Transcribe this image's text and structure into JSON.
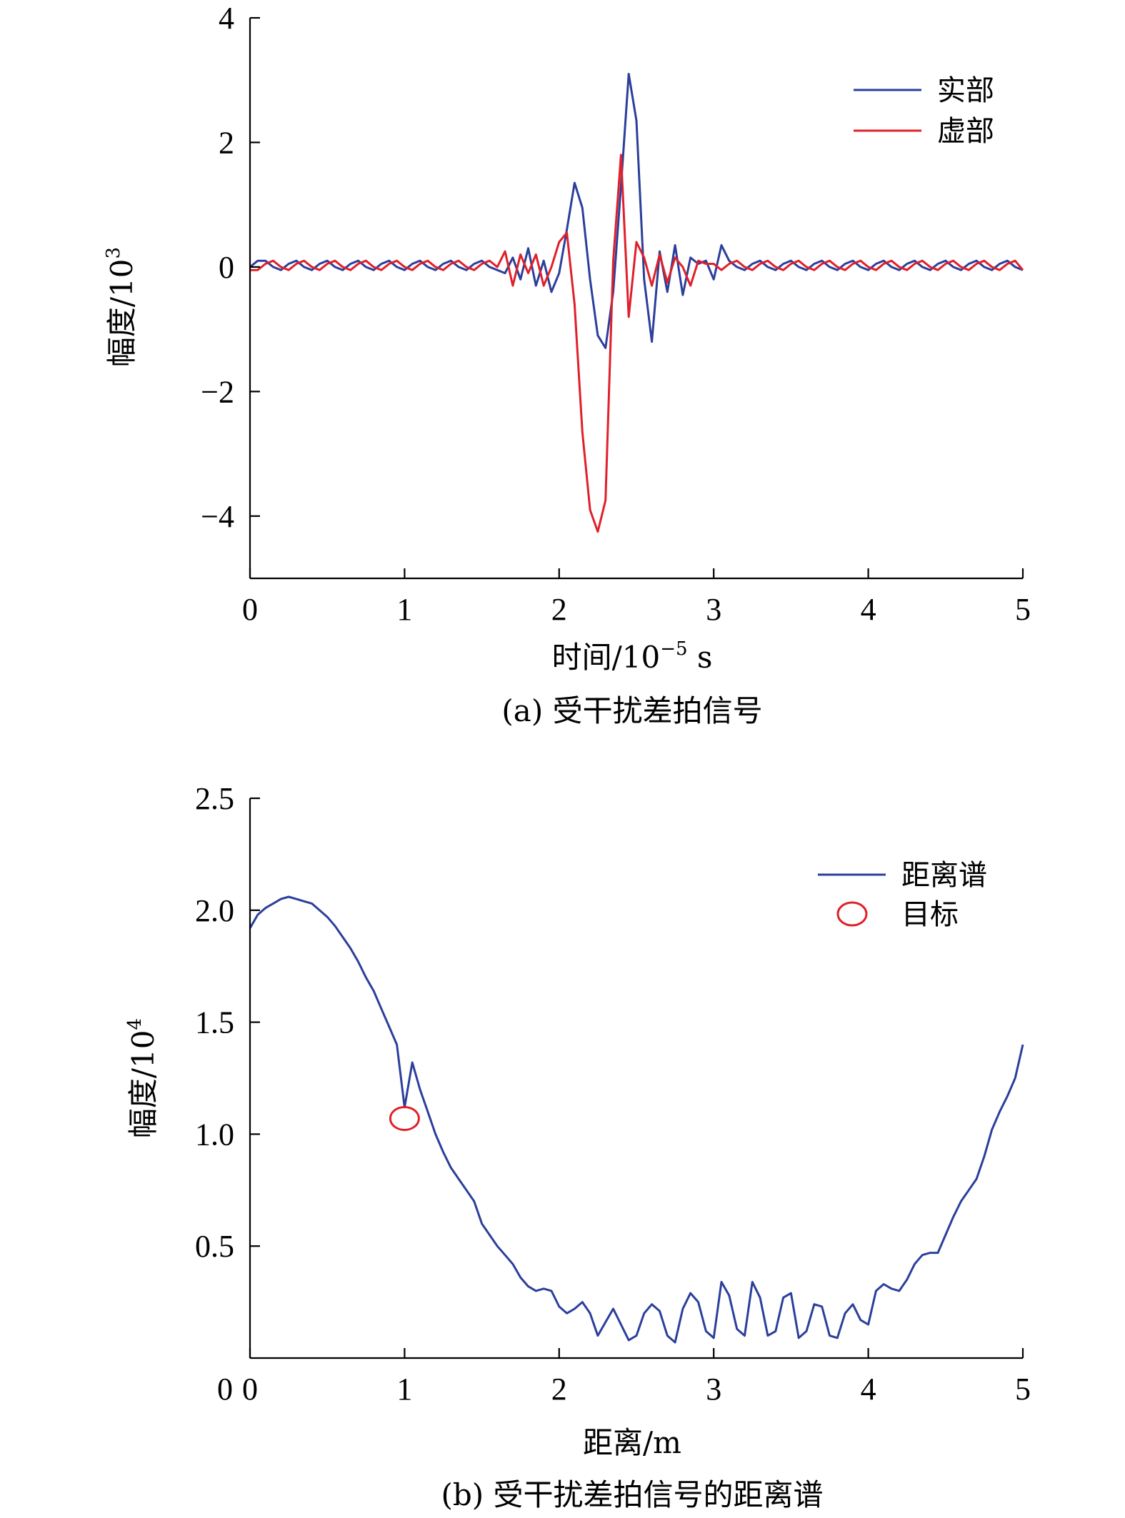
{
  "colors": {
    "blue": "#2b3f9b",
    "red": "#e0202a",
    "axis": "#000000"
  },
  "chart_data": [
    {
      "type": "line",
      "xlabel_main": "时间/10",
      "xlabel_sup": "−5",
      "xlabel_unit": " s",
      "ylabel_main": "幅度/10",
      "ylabel_sup": "3",
      "caption": "(a) 受干扰差拍信号",
      "xlim": [
        0,
        5
      ],
      "ylim": [
        -5,
        4
      ],
      "xticks": [
        0,
        1,
        2,
        3,
        4,
        5
      ],
      "xtick_labels": [
        "0",
        "1",
        "2",
        "3",
        "4",
        "5"
      ],
      "yticks": [
        4,
        2,
        0,
        -2,
        -4
      ],
      "ytick_labels": [
        "4",
        "2",
        "0",
        "−2",
        "−4"
      ],
      "legend_position": "top-right",
      "series": [
        {
          "name": "实部",
          "color": "#2b3f9b",
          "x": [
            0,
            0.05,
            0.1,
            0.15,
            0.2,
            0.25,
            0.3,
            0.35,
            0.4,
            0.45,
            0.5,
            0.55,
            0.6,
            0.65,
            0.7,
            0.75,
            0.8,
            0.85,
            0.9,
            0.95,
            1.0,
            1.05,
            1.1,
            1.15,
            1.2,
            1.25,
            1.3,
            1.35,
            1.4,
            1.45,
            1.5,
            1.55,
            1.6,
            1.65,
            1.7,
            1.75,
            1.8,
            1.85,
            1.9,
            1.95,
            2.0,
            2.05,
            2.1,
            2.15,
            2.2,
            2.25,
            2.3,
            2.35,
            2.4,
            2.45,
            2.5,
            2.55,
            2.6,
            2.65,
            2.7,
            2.75,
            2.8,
            2.85,
            2.9,
            2.95,
            3.0,
            3.05,
            3.1,
            3.15,
            3.2,
            3.25,
            3.3,
            3.35,
            3.4,
            3.45,
            3.5,
            3.55,
            3.6,
            3.65,
            3.7,
            3.75,
            3.8,
            3.85,
            3.9,
            3.95,
            4.0,
            4.05,
            4.1,
            4.15,
            4.2,
            4.25,
            4.3,
            4.35,
            4.4,
            4.45,
            4.5,
            4.55,
            4.6,
            4.65,
            4.7,
            4.75,
            4.8,
            4.85,
            4.9,
            4.95,
            5.0
          ],
          "y": [
            0.0,
            0.1,
            0.1,
            0.0,
            -0.05,
            0.05,
            0.1,
            0.0,
            -0.05,
            0.05,
            0.1,
            0.0,
            -0.05,
            0.05,
            0.1,
            0.0,
            -0.05,
            0.05,
            0.1,
            0.0,
            -0.05,
            0.05,
            0.1,
            0.0,
            -0.05,
            0.05,
            0.1,
            0.0,
            -0.05,
            0.05,
            0.1,
            0.0,
            -0.05,
            -0.1,
            0.15,
            -0.2,
            0.3,
            -0.3,
            0.1,
            -0.4,
            -0.1,
            0.6,
            1.35,
            0.95,
            -0.2,
            -1.1,
            -1.3,
            -0.4,
            1.3,
            3.1,
            2.35,
            -0.2,
            -1.2,
            0.25,
            -0.4,
            0.35,
            -0.45,
            0.15,
            0.05,
            0.1,
            -0.2,
            0.35,
            0.1,
            0.0,
            -0.05,
            0.05,
            0.1,
            0.0,
            -0.05,
            0.05,
            0.1,
            0.0,
            -0.05,
            0.05,
            0.1,
            0.0,
            -0.05,
            0.05,
            0.1,
            0.0,
            -0.05,
            0.05,
            0.1,
            0.0,
            -0.05,
            0.05,
            0.1,
            0.0,
            -0.05,
            0.05,
            0.1,
            0.0,
            -0.05,
            0.05,
            0.1,
            0.0,
            -0.05,
            0.05,
            0.1,
            0.0,
            -0.05
          ]
        },
        {
          "name": "虚部",
          "color": "#e0202a",
          "x": [
            0,
            0.05,
            0.1,
            0.15,
            0.2,
            0.25,
            0.3,
            0.35,
            0.4,
            0.45,
            0.5,
            0.55,
            0.6,
            0.65,
            0.7,
            0.75,
            0.8,
            0.85,
            0.9,
            0.95,
            1.0,
            1.05,
            1.1,
            1.15,
            1.2,
            1.25,
            1.3,
            1.35,
            1.4,
            1.45,
            1.5,
            1.55,
            1.6,
            1.65,
            1.7,
            1.75,
            1.8,
            1.85,
            1.9,
            1.95,
            2.0,
            2.05,
            2.1,
            2.15,
            2.2,
            2.25,
            2.3,
            2.35,
            2.4,
            2.45,
            2.5,
            2.55,
            2.6,
            2.65,
            2.7,
            2.75,
            2.8,
            2.85,
            2.9,
            2.95,
            3.0,
            3.05,
            3.1,
            3.15,
            3.2,
            3.25,
            3.3,
            3.35,
            3.4,
            3.45,
            3.5,
            3.55,
            3.6,
            3.65,
            3.7,
            3.75,
            3.8,
            3.85,
            3.9,
            3.95,
            4.0,
            4.05,
            4.1,
            4.15,
            4.2,
            4.25,
            4.3,
            4.35,
            4.4,
            4.45,
            4.5,
            4.55,
            4.6,
            4.65,
            4.7,
            4.75,
            4.8,
            4.85,
            4.9,
            4.95,
            5.0
          ],
          "y": [
            -0.05,
            -0.05,
            0.05,
            0.1,
            0.0,
            -0.05,
            0.05,
            0.1,
            0.0,
            -0.05,
            0.05,
            0.1,
            0.0,
            -0.05,
            0.05,
            0.1,
            0.0,
            -0.05,
            0.05,
            0.1,
            0.0,
            -0.05,
            0.05,
            0.1,
            0.0,
            -0.05,
            0.05,
            0.1,
            0.0,
            -0.05,
            0.05,
            0.1,
            0.0,
            0.25,
            -0.3,
            0.2,
            -0.1,
            0.2,
            -0.3,
            0.0,
            0.4,
            0.55,
            -0.6,
            -2.65,
            -3.9,
            -4.25,
            -3.75,
            0.1,
            1.8,
            -0.8,
            0.4,
            0.15,
            -0.3,
            0.2,
            -0.25,
            0.15,
            0.0,
            -0.3,
            0.1,
            0.05,
            0.05,
            -0.05,
            0.05,
            0.1,
            0.0,
            -0.05,
            0.05,
            0.1,
            0.0,
            -0.05,
            0.05,
            0.1,
            0.0,
            -0.05,
            0.05,
            0.1,
            0.0,
            -0.05,
            0.05,
            0.1,
            0.0,
            -0.05,
            0.05,
            0.1,
            0.0,
            -0.05,
            0.05,
            0.1,
            0.0,
            -0.05,
            0.05,
            0.1,
            0.0,
            -0.05,
            0.05,
            0.1,
            0.0,
            -0.05,
            0.05,
            0.1,
            -0.05
          ]
        }
      ]
    },
    {
      "type": "line",
      "xlabel_main": "距离/m",
      "ylabel_main": "幅度/10",
      "ylabel_sup": "4",
      "caption": "(b) 受干扰差拍信号的距离谱",
      "xlim": [
        0,
        5
      ],
      "ylim": [
        0,
        2.5
      ],
      "xticks": [
        0,
        1,
        2,
        3,
        4,
        5
      ],
      "xtick_labels": [
        "0",
        "1",
        "2",
        "3",
        "4",
        "5"
      ],
      "yticks": [
        2.5,
        2.0,
        1.5,
        1.0,
        0.5
      ],
      "ytick_labels": [
        "2.5",
        "2.0",
        "1.5",
        "1.0",
        "0.5"
      ],
      "legend_position": "top-right",
      "series": [
        {
          "name": "距离谱",
          "color": "#2b3f9b",
          "x": [
            0,
            0.05,
            0.1,
            0.15,
            0.2,
            0.25,
            0.3,
            0.35,
            0.4,
            0.45,
            0.5,
            0.55,
            0.6,
            0.65,
            0.7,
            0.75,
            0.8,
            0.85,
            0.9,
            0.95,
            1.0,
            1.05,
            1.1,
            1.15,
            1.2,
            1.25,
            1.3,
            1.35,
            1.4,
            1.45,
            1.5,
            1.55,
            1.6,
            1.65,
            1.7,
            1.75,
            1.8,
            1.85,
            1.9,
            1.95,
            2.0,
            2.05,
            2.1,
            2.15,
            2.2,
            2.25,
            2.3,
            2.35,
            2.4,
            2.45,
            2.5,
            2.55,
            2.6,
            2.65,
            2.7,
            2.75,
            2.8,
            2.85,
            2.9,
            2.95,
            3.0,
            3.05,
            3.1,
            3.15,
            3.2,
            3.25,
            3.3,
            3.35,
            3.4,
            3.45,
            3.5,
            3.55,
            3.6,
            3.65,
            3.7,
            3.75,
            3.8,
            3.85,
            3.9,
            3.95,
            4.0,
            4.05,
            4.1,
            4.15,
            4.2,
            4.25,
            4.3,
            4.35,
            4.4,
            4.45,
            4.5,
            4.55,
            4.6,
            4.65,
            4.7,
            4.75,
            4.8,
            4.85,
            4.9,
            4.95,
            5.0
          ],
          "y": [
            1.92,
            1.98,
            2.01,
            2.03,
            2.05,
            2.06,
            2.05,
            2.04,
            2.03,
            2.0,
            1.97,
            1.93,
            1.88,
            1.83,
            1.77,
            1.7,
            1.64,
            1.56,
            1.48,
            1.4,
            1.12,
            1.32,
            1.2,
            1.1,
            1.0,
            0.92,
            0.85,
            0.8,
            0.75,
            0.7,
            0.6,
            0.55,
            0.5,
            0.46,
            0.42,
            0.36,
            0.32,
            0.3,
            0.31,
            0.3,
            0.23,
            0.2,
            0.22,
            0.25,
            0.2,
            0.1,
            0.16,
            0.22,
            0.15,
            0.08,
            0.1,
            0.2,
            0.24,
            0.21,
            0.1,
            0.07,
            0.22,
            0.29,
            0.25,
            0.12,
            0.09,
            0.34,
            0.28,
            0.13,
            0.1,
            0.34,
            0.27,
            0.1,
            0.12,
            0.27,
            0.29,
            0.09,
            0.12,
            0.24,
            0.23,
            0.1,
            0.09,
            0.2,
            0.24,
            0.17,
            0.15,
            0.3,
            0.33,
            0.31,
            0.3,
            0.35,
            0.42,
            0.46,
            0.47,
            0.47,
            0.55,
            0.63,
            0.7,
            0.75,
            0.8,
            0.9,
            1.02,
            1.1,
            1.17,
            1.25,
            1.4
          ]
        }
      ],
      "markers": [
        {
          "name": "目标",
          "x": 1.0,
          "y": 1.07,
          "color": "#e0202a",
          "shape": "circle"
        }
      ]
    }
  ]
}
